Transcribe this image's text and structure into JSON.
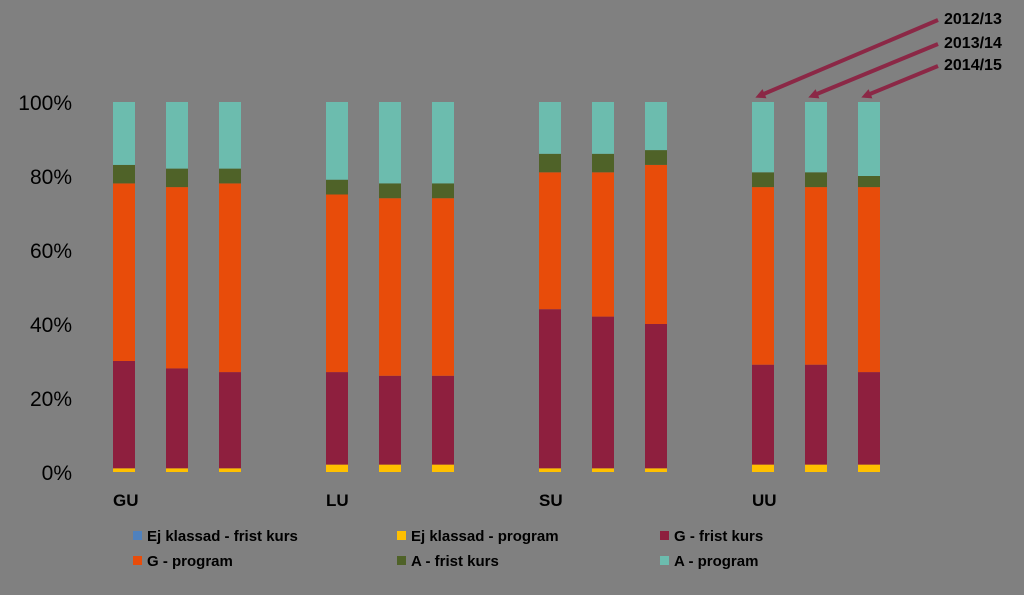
{
  "chart_data": {
    "type": "bar",
    "stacked": true,
    "percent_scale": true,
    "categories": [
      "GU",
      "LU",
      "SU",
      "UU"
    ],
    "bars_per_category": [
      "2012/13",
      "2013/14",
      "2014/15"
    ],
    "year_labels": [
      "2012/13",
      "2013/14",
      "2014/15"
    ],
    "ylim": [
      0,
      100
    ],
    "yticks": [
      "0%",
      "20%",
      "40%",
      "60%",
      "80%",
      "100%"
    ],
    "series": [
      {
        "name": "Ej klassad - frist kurs",
        "color": "#4f81bd",
        "values": [
          [
            0,
            0,
            0
          ],
          [
            0,
            0,
            0
          ],
          [
            0,
            0,
            0
          ],
          [
            0,
            0,
            0
          ]
        ]
      },
      {
        "name": "Ej klassad - program",
        "color": "#ffc000",
        "values": [
          [
            1,
            1,
            1
          ],
          [
            2,
            2,
            2
          ],
          [
            1,
            1,
            1
          ],
          [
            2,
            2,
            2
          ]
        ]
      },
      {
        "name": "G - frist kurs",
        "color": "#8e1f3e",
        "values": [
          [
            29,
            27,
            26
          ],
          [
            25,
            24,
            24
          ],
          [
            43,
            41,
            39
          ],
          [
            27,
            27,
            25
          ]
        ]
      },
      {
        "name": "G - program",
        "color": "#e84c0a",
        "values": [
          [
            48,
            49,
            51
          ],
          [
            48,
            48,
            48
          ],
          [
            37,
            39,
            43
          ],
          [
            48,
            48,
            50
          ]
        ]
      },
      {
        "name": "A - frist kurs",
        "color": "#4f6228",
        "values": [
          [
            5,
            5,
            4
          ],
          [
            4,
            4,
            4
          ],
          [
            5,
            5,
            4
          ],
          [
            4,
            4,
            3
          ]
        ]
      },
      {
        "name": "A - program",
        "color": "#6cbcae",
        "values": [
          [
            17,
            18,
            18
          ],
          [
            21,
            22,
            22
          ],
          [
            14,
            14,
            13
          ],
          [
            19,
            19,
            20
          ]
        ]
      }
    ],
    "grid": false,
    "legend_position": "bottom"
  }
}
